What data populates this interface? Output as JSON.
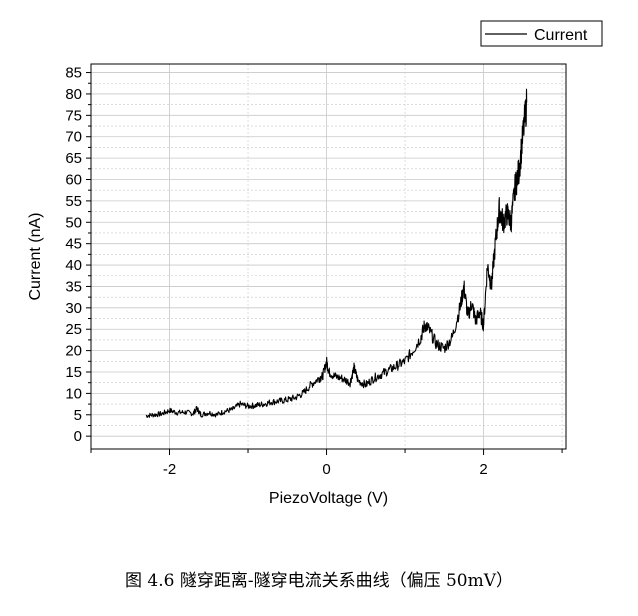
{
  "chart_data": {
    "type": "line",
    "title": "",
    "xlabel": "PiezoVoltage (V)",
    "ylabel": "Current (nA)",
    "xlim": [
      -3.0,
      3.05
    ],
    "ylim": [
      -3,
      87
    ],
    "xticks": [
      -2,
      0,
      2
    ],
    "xtick_labels": [
      "-2",
      "0",
      "2"
    ],
    "yticks": [
      0,
      5,
      10,
      15,
      20,
      25,
      30,
      35,
      40,
      45,
      50,
      55,
      60,
      65,
      70,
      75,
      80,
      85
    ],
    "ytick_labels": [
      "0",
      "5",
      "10",
      "15",
      "20",
      "25",
      "30",
      "35",
      "40",
      "45",
      "50",
      "55",
      "60",
      "65",
      "70",
      "75",
      "80",
      "85"
    ],
    "grid": true,
    "legend": "top-right",
    "series": [
      {
        "name": "Current",
        "color": "#000000",
        "x": [
          -2.3,
          -2.2,
          -2.1,
          -2.0,
          -1.9,
          -1.8,
          -1.7,
          -1.65,
          -1.6,
          -1.5,
          -1.4,
          -1.3,
          -1.2,
          -1.1,
          -1.0,
          -0.9,
          -0.8,
          -0.7,
          -0.6,
          -0.5,
          -0.4,
          -0.3,
          -0.2,
          -0.1,
          -0.05,
          0.0,
          0.03,
          0.1,
          0.2,
          0.3,
          0.35,
          0.4,
          0.5,
          0.6,
          0.7,
          0.8,
          0.9,
          1.0,
          1.1,
          1.2,
          1.25,
          1.3,
          1.4,
          1.5,
          1.6,
          1.7,
          1.75,
          1.8,
          1.85,
          1.9,
          1.95,
          2.0,
          2.05,
          2.1,
          2.15,
          2.2,
          2.25,
          2.3,
          2.35,
          2.4,
          2.45,
          2.5,
          2.55
        ],
        "y": [
          4.8,
          5.0,
          5.2,
          6.0,
          5.5,
          5.6,
          5.3,
          6.5,
          5.0,
          5.5,
          5.0,
          5.8,
          6.2,
          7.5,
          7.0,
          7.2,
          7.5,
          8.0,
          8.2,
          8.5,
          9.0,
          10.0,
          12.0,
          13.5,
          14.0,
          17.5,
          15.0,
          14.0,
          13.5,
          12.5,
          16.0,
          13.0,
          12.0,
          13.5,
          14.5,
          15.5,
          16.5,
          17.5,
          20.0,
          23.0,
          26.0,
          25.0,
          21.5,
          20.5,
          23.0,
          30.0,
          35.0,
          28.0,
          31.0,
          27.0,
          29.0,
          26.0,
          40.0,
          35.0,
          45.0,
          53.0,
          50.0,
          52.0,
          50.0,
          58.0,
          62.0,
          70.0,
          78.0
        ]
      }
    ]
  },
  "caption": "图 4.6  隧穿距离-隧穿电流关系曲线（偏压 50mV）"
}
